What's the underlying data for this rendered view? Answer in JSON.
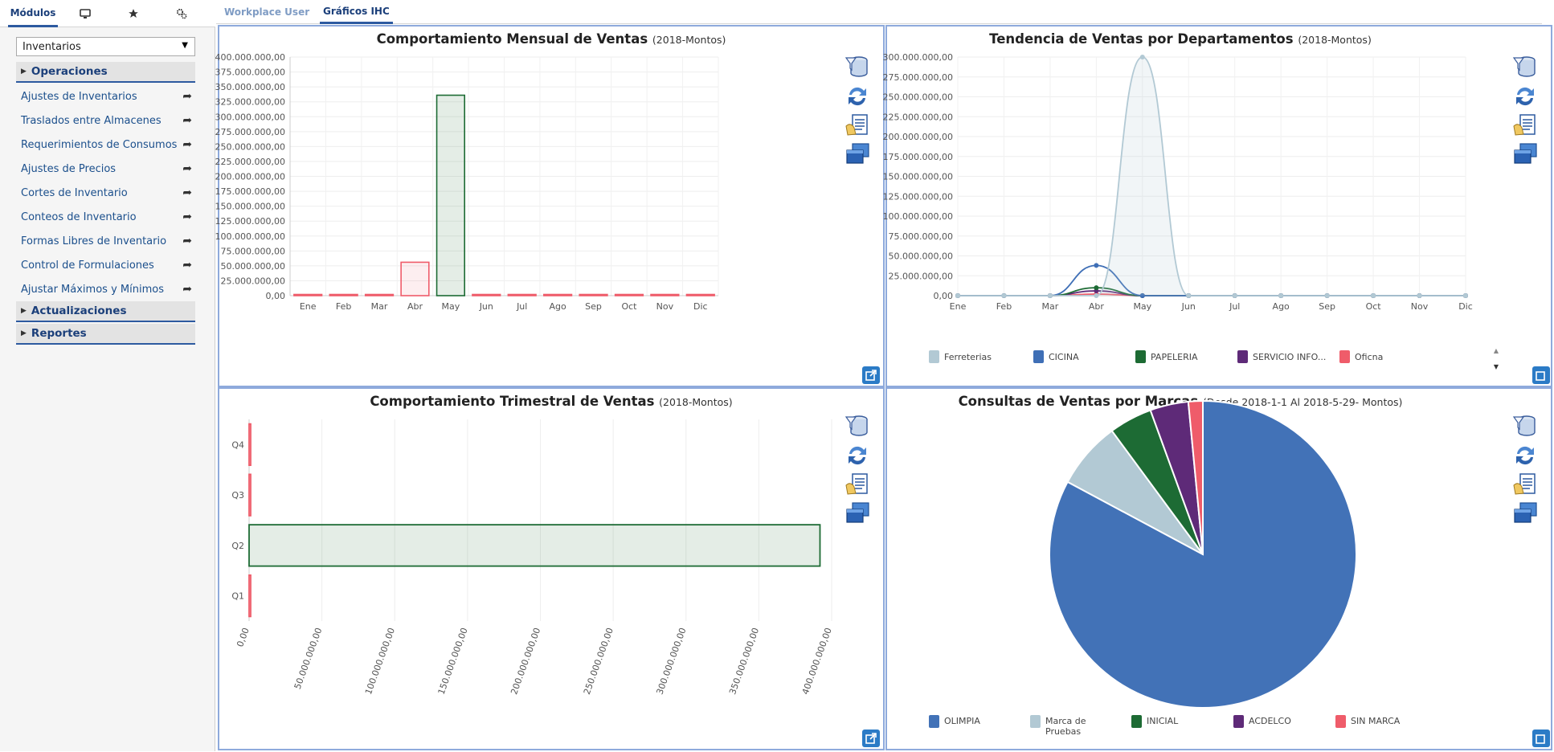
{
  "sidebar": {
    "tabs": [
      {
        "label": "Módulos",
        "icon": ""
      },
      {
        "label": "",
        "icon": "monitor-icon"
      },
      {
        "label": "",
        "icon": "star-icon"
      },
      {
        "label": "",
        "icon": "gears-icon"
      }
    ],
    "module_select": {
      "value": "Inventarios"
    },
    "sections": [
      {
        "label": "Operaciones",
        "expanded": true
      },
      {
        "label": "Actualizaciones",
        "expanded": false
      },
      {
        "label": "Reportes",
        "expanded": false
      }
    ],
    "operaciones_items": [
      "Ajustes de Inventarios",
      "Traslados entre Almacenes",
      "Requerimientos de Consumos",
      "Ajustes de Precios",
      "Cortes de Inventario",
      "Conteos de Inventario",
      "Formas Libres de Inventario",
      "Control de Formulaciones",
      "Ajustar Máximos y Mínimos"
    ]
  },
  "top_tabs": [
    {
      "label": "Workplace User",
      "active": false
    },
    {
      "label": "Gráficos IHC",
      "active": true
    }
  ],
  "panels": {
    "monthly": {
      "title": "Comportamiento Mensual de Ventas",
      "subtitle": "(2018-Montos)"
    },
    "trend": {
      "title": "Tendencia de Ventas por Departamentos",
      "subtitle": "(2018-Montos)"
    },
    "quarterly": {
      "title": "Comportamiento Trimestral de Ventas",
      "subtitle": "(2018-Montos)"
    },
    "brands": {
      "title": "Consultas de Ventas por Marcas",
      "subtitle": "(Desde 2018-1-1 Al 2018-5-29- Montos)"
    }
  },
  "colors": {
    "accent": "#2d5aa0",
    "panel_border": "#8eaadc",
    "red": "#ef5c6a",
    "green": "#1d6b34",
    "blue": "#3f6fb6",
    "lightblue": "#b2c9d4",
    "purple": "#5e2a78"
  },
  "chart_data": [
    {
      "id": "monthly",
      "type": "bar",
      "title": "Comportamiento Mensual de Ventas",
      "subtitle": "(2018-Montos)",
      "categories": [
        "Ene",
        "Feb",
        "Mar",
        "Abr",
        "May",
        "Jun",
        "Jul",
        "Ago",
        "Sep",
        "Oct",
        "Nov",
        "Dic"
      ],
      "values": [
        0,
        0,
        0,
        56000000,
        336000000,
        0,
        0,
        0,
        0,
        0,
        0,
        0
      ],
      "bar_colors": [
        "red",
        "red",
        "red",
        "red",
        "green",
        "red",
        "red",
        "red",
        "red",
        "red",
        "red",
        "red"
      ],
      "ylim": [
        0,
        400000000
      ],
      "yticks": [
        "0,00",
        "25.000.000,00",
        "50.000.000,00",
        "75.000.000,00",
        "100.000.000,00",
        "125.000.000,00",
        "150.000.000,00",
        "175.000.000,00",
        "200.000.000,00",
        "225.000.000,00",
        "250.000.000,00",
        "275.000.000,00",
        "300.000.000,00",
        "325.000.000,00",
        "350.000.000,00",
        "375.000.000,00",
        "400.000.000,00"
      ],
      "grid": true
    },
    {
      "id": "trend",
      "type": "line",
      "title": "Tendencia de Ventas por Departamentos",
      "subtitle": "(2018-Montos)",
      "categories": [
        "Ene",
        "Feb",
        "Mar",
        "Abr",
        "May",
        "Jun",
        "Jul",
        "Ago",
        "Sep",
        "Oct",
        "Nov",
        "Dic"
      ],
      "series": [
        {
          "name": "Ferreterias",
          "color": "#b2c9d4",
          "values": [
            0,
            0,
            0,
            0,
            300000000,
            0,
            0,
            0,
            0,
            0,
            0,
            0
          ]
        },
        {
          "name": "CICINA",
          "color": "#3f6fb6",
          "values": [
            0,
            0,
            0,
            38000000,
            0,
            0,
            0,
            0,
            0,
            0,
            0,
            0
          ]
        },
        {
          "name": "PAPELERIA",
          "color": "#1d6b34",
          "values": [
            0,
            0,
            0,
            10000000,
            0,
            0,
            0,
            0,
            0,
            0,
            0,
            0
          ]
        },
        {
          "name": "SERVICIO INFO...",
          "color": "#5e2a78",
          "values": [
            0,
            0,
            0,
            6000000,
            0,
            0,
            0,
            0,
            0,
            0,
            0,
            0
          ]
        },
        {
          "name": "Oficna",
          "color": "#ef5c6a",
          "values": [
            0,
            0,
            0,
            2000000,
            0,
            0,
            0,
            0,
            0,
            0,
            0,
            0
          ]
        }
      ],
      "ylim": [
        0,
        300000000
      ],
      "yticks": [
        "0,00",
        "25.000.000,00",
        "50.000.000,00",
        "75.000.000,00",
        "100.000.000,00",
        "125.000.000,00",
        "150.000.000,00",
        "175.000.000,00",
        "200.000.000,00",
        "225.000.000,00",
        "250.000.000,00",
        "275.000.000,00",
        "300.000.000,00"
      ],
      "grid": true,
      "legend": "bottom"
    },
    {
      "id": "quarterly",
      "type": "bar",
      "orientation": "horizontal",
      "title": "Comportamiento Trimestral de Ventas",
      "subtitle": "(2018-Montos)",
      "categories": [
        "Q4",
        "Q3",
        "Q2",
        "Q1"
      ],
      "values": [
        0,
        0,
        392000000,
        0
      ],
      "bar_colors": [
        "red",
        "red",
        "green",
        "red"
      ],
      "xlim": [
        0,
        400000000
      ],
      "xticks": [
        "0,00",
        "50.000.000,00",
        "100.000.000,00",
        "150.000.000,00",
        "200.000.000,00",
        "250.000.000,00",
        "300.000.000,00",
        "350.000.000,00",
        "400.000.000,00"
      ],
      "grid": true
    },
    {
      "id": "brands",
      "type": "pie",
      "title": "Consultas de Ventas por Marcas",
      "subtitle": "(Desde 2018-1-1 Al 2018-5-29- Montos)",
      "slices": [
        {
          "name": "OLIMPIA",
          "value": 82,
          "color": "#4272b7"
        },
        {
          "name": "Marca de Pruebas",
          "value": 7,
          "color": "#b2c9d4"
        },
        {
          "name": "INICIAL",
          "value": 4.5,
          "color": "#1d6b34"
        },
        {
          "name": "ACDELCO",
          "value": 4,
          "color": "#5e2a78"
        },
        {
          "name": "SIN MARCA",
          "value": 1.5,
          "color": "#ef5c6a"
        }
      ],
      "legend": "bottom"
    }
  ]
}
